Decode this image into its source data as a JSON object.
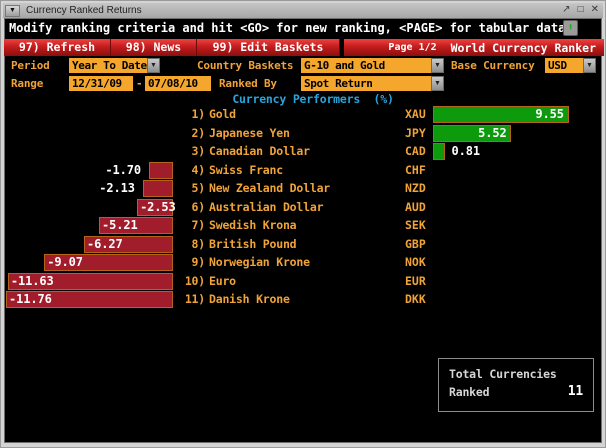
{
  "window": {
    "title": "Currency Ranked Returns",
    "menu_glyph": "▼",
    "controls": [
      {
        "name": "popout",
        "glyph": "↗"
      },
      {
        "name": "maximize",
        "glyph": "□"
      },
      {
        "name": "close",
        "glyph": "✕"
      }
    ]
  },
  "header": {
    "message": "Modify ranking criteria and hit <GO> for new ranking, <PAGE> for tabular data",
    "export_icon_glyph": "⬆"
  },
  "toolbar": {
    "buttons": [
      "97) Refresh",
      "98) News",
      "99) Edit Baskets"
    ],
    "page": "Page 1/2",
    "app_title": "World Currency Ranker"
  },
  "filters": {
    "period_label": "Period",
    "period_value": "Year To Date",
    "country_baskets_label": "Country Baskets",
    "country_baskets_value": "G-10 and Gold",
    "base_currency_label": "Base Currency",
    "base_currency_value": "USD",
    "range_label": "Range",
    "range_start": "12/31/09",
    "range_separator": "-",
    "range_end": "07/08/10",
    "ranked_by_label": "Ranked By",
    "ranked_by_value": "Spot Return",
    "dropdown_glyph": "▼"
  },
  "chart_data": {
    "type": "bar",
    "orientation": "horizontal",
    "title": "Currency Performers  (%)",
    "ranks": [
      "1)",
      "2)",
      "3)",
      "4)",
      "5)",
      "6)",
      "7)",
      "8)",
      "9)",
      "10)",
      "11)"
    ],
    "categories": [
      "Gold",
      "Japanese Yen",
      "Canadian Dollar",
      "Swiss Franc",
      "New Zealand Dollar",
      "Australian Dollar",
      "Swedish Krona",
      "British Pound",
      "Norwegian Krone",
      "Euro",
      "Danish Krone"
    ],
    "tickers": [
      "XAU",
      "JPY",
      "CAD",
      "CHF",
      "NZD",
      "AUD",
      "SEK",
      "GBP",
      "NOK",
      "EUR",
      "DKK"
    ],
    "values": [
      9.55,
      5.52,
      0.81,
      -1.7,
      -2.13,
      -2.53,
      -5.21,
      -6.27,
      -9.07,
      -11.63,
      -11.76
    ],
    "value_format": "0.00",
    "positive_color": "#0d9b0d",
    "negative_color": "#a11d2b",
    "bar_border_color": "#b4631b",
    "axis_range_negative": [
      -12,
      0
    ],
    "axis_range_positive": [
      0,
      10
    ],
    "grid": false,
    "legend": false
  },
  "summary": {
    "line1": "Total Currencies",
    "line2": "Ranked",
    "value": "11"
  }
}
